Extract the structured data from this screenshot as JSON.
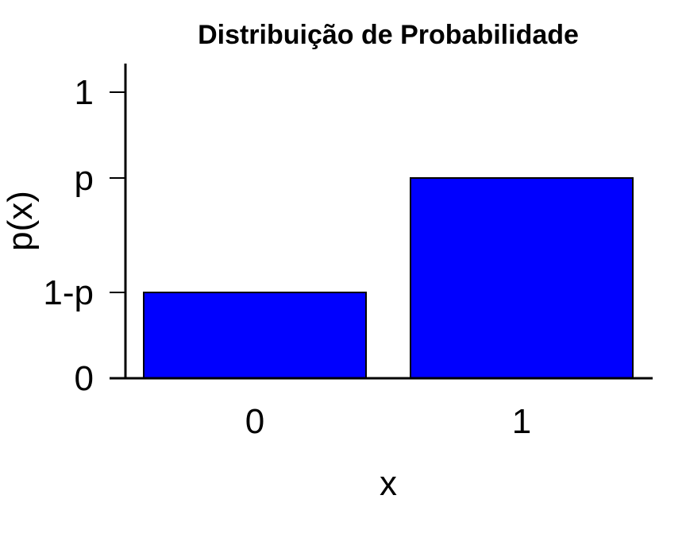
{
  "chart_data": {
    "type": "bar",
    "title": "Distribuição de Probabilidade",
    "xlabel": "x",
    "ylabel": "p(x)",
    "categories": [
      "0",
      "1"
    ],
    "values": [
      0.3,
      0.7
    ],
    "ylim": [
      0,
      1
    ],
    "yticks": [
      {
        "value": 0,
        "label": "0"
      },
      {
        "value": 0.3,
        "label": "1-p"
      },
      {
        "value": 0.7,
        "label": "p"
      },
      {
        "value": 1,
        "label": "1"
      }
    ],
    "grid": false,
    "legend": "none",
    "colors": {
      "bar_fill": "#0000ff",
      "bar_stroke": "#000000",
      "axis": "#000000"
    }
  }
}
